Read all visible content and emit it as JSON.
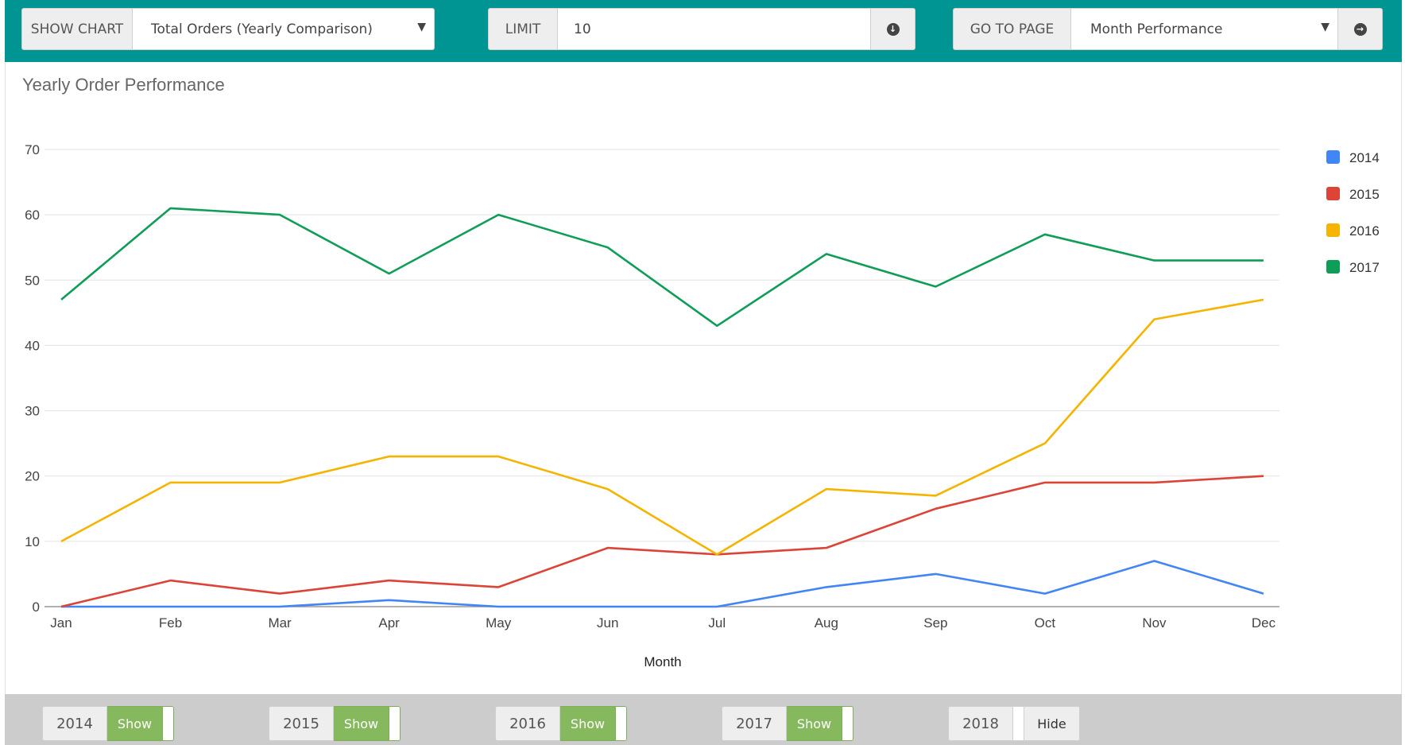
{
  "toolbar": {
    "show_chart_label": "SHOW CHART",
    "show_chart_value": "Total Orders (Yearly Comparison)",
    "limit_label": "LIMIT",
    "limit_value": "10",
    "go_to_page_label": "GO TO PAGE",
    "go_to_page_value": "Month Performance"
  },
  "chart_data": {
    "type": "line",
    "title": "Yearly Order Performance",
    "xlabel": "Month",
    "ylabel": "",
    "categories": [
      "Jan",
      "Feb",
      "Mar",
      "Apr",
      "May",
      "Jun",
      "Jul",
      "Aug",
      "Sep",
      "Oct",
      "Nov",
      "Dec"
    ],
    "ylim": [
      0,
      70
    ],
    "yticks": [
      0,
      10,
      20,
      30,
      40,
      50,
      60,
      70
    ],
    "grid": true,
    "legend_position": "right",
    "series": [
      {
        "name": "2014",
        "color": "#4285f4",
        "values": [
          0,
          0,
          0,
          1,
          0,
          0,
          0,
          3,
          5,
          2,
          7,
          2
        ]
      },
      {
        "name": "2015",
        "color": "#db4437",
        "values": [
          0,
          4,
          2,
          4,
          3,
          9,
          8,
          9,
          15,
          19,
          19,
          20
        ]
      },
      {
        "name": "2016",
        "color": "#f4b400",
        "values": [
          10,
          19,
          19,
          23,
          23,
          18,
          8,
          18,
          17,
          25,
          44,
          47
        ]
      },
      {
        "name": "2017",
        "color": "#0f9d58",
        "values": [
          47,
          61,
          60,
          51,
          60,
          55,
          43,
          54,
          49,
          57,
          53,
          53
        ]
      }
    ]
  },
  "toggles": [
    {
      "year": "2014",
      "state": "Show"
    },
    {
      "year": "2015",
      "state": "Show"
    },
    {
      "year": "2016",
      "state": "Show"
    },
    {
      "year": "2017",
      "state": "Show"
    },
    {
      "year": "2018",
      "state": "Hide"
    }
  ]
}
